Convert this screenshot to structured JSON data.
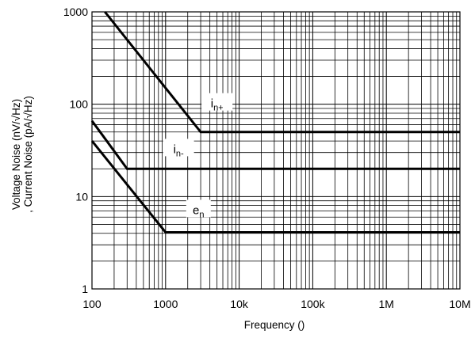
{
  "chart_data": {
    "type": "line",
    "title": "",
    "xlabel": "Frequency ()",
    "ylabel_lines": [
      "Voltage Noise (nV/√Hz)",
      ", Current Noise (pA/√Hz)"
    ],
    "x_scale": "log",
    "y_scale": "log",
    "xlim": [
      100,
      10000000
    ],
    "ylim": [
      1,
      1000
    ],
    "grid": true,
    "legend": "none",
    "x_ticks": [
      {
        "value": 100,
        "label": "100"
      },
      {
        "value": 1000,
        "label": "1000"
      },
      {
        "value": 10000,
        "label": "10k"
      },
      {
        "value": 100000,
        "label": "100k"
      },
      {
        "value": 1000000,
        "label": "1M"
      },
      {
        "value": 10000000,
        "label": "10M"
      }
    ],
    "y_ticks": [
      {
        "value": 1,
        "label": "1"
      },
      {
        "value": 10,
        "label": "10"
      },
      {
        "value": 100,
        "label": "100"
      },
      {
        "value": 1000,
        "label": "1000"
      }
    ],
    "series": [
      {
        "label_main": "i",
        "label_sub": "n+",
        "label_anchor": {
          "x": 5000,
          "y": 100
        },
        "points": [
          {
            "x": 150,
            "y": 1000
          },
          {
            "x": 3000,
            "y": 50
          },
          {
            "x": 10000000,
            "y": 50
          }
        ]
      },
      {
        "label_main": "i",
        "label_sub": "n-",
        "label_anchor": {
          "x": 1500,
          "y": 32
        },
        "points": [
          {
            "x": 100,
            "y": 66
          },
          {
            "x": 300,
            "y": 20
          },
          {
            "x": 10000000,
            "y": 20
          }
        ]
      },
      {
        "label_main": "e",
        "label_sub": "n",
        "label_anchor": {
          "x": 2800,
          "y": 7
        },
        "points": [
          {
            "x": 100,
            "y": 40
          },
          {
            "x": 1000,
            "y": 4.1
          },
          {
            "x": 10000000,
            "y": 4.1
          }
        ]
      }
    ]
  }
}
